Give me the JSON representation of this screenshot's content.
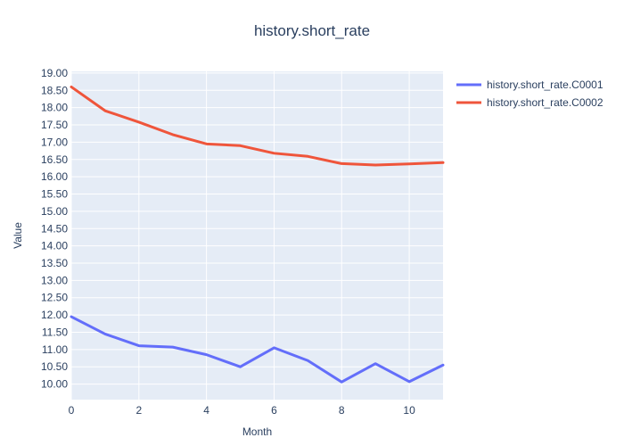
{
  "chart_data": {
    "type": "line",
    "title": "history.short_rate",
    "xlabel": "Month",
    "ylabel": "Value",
    "xlim": [
      0,
      11
    ],
    "ylim": [
      9.55,
      19.05
    ],
    "x_ticks": [
      0,
      2,
      4,
      6,
      8,
      10
    ],
    "y_ticks": [
      10.0,
      10.5,
      11.0,
      11.5,
      12.0,
      12.5,
      13.0,
      13.5,
      14.0,
      14.5,
      15.0,
      15.5,
      16.0,
      16.5,
      17.0,
      17.5,
      18.0,
      18.5,
      19.0
    ],
    "x_tick_labels": [
      "0",
      "2",
      "4",
      "6",
      "8",
      "10"
    ],
    "y_tick_labels": [
      "10.00",
      "10.50",
      "11.00",
      "11.50",
      "12.00",
      "12.50",
      "13.00",
      "13.50",
      "14.00",
      "14.50",
      "15.00",
      "15.50",
      "16.00",
      "16.50",
      "17.00",
      "17.50",
      "18.00",
      "18.50",
      "19.00"
    ],
    "grid": true,
    "legend_position": "top-right",
    "x": [
      0,
      1,
      2,
      3,
      4,
      5,
      6,
      7,
      8,
      9,
      10,
      11
    ],
    "series": [
      {
        "name": "history.short_rate.C0001",
        "color": "#636efa",
        "values": [
          11.95,
          11.45,
          11.11,
          11.07,
          10.85,
          10.5,
          11.05,
          10.68,
          10.06,
          10.59,
          10.07,
          10.55
        ]
      },
      {
        "name": "history.short_rate.C0002",
        "color": "#ef553b",
        "values": [
          18.6,
          17.91,
          17.58,
          17.22,
          16.95,
          16.9,
          16.68,
          16.59,
          16.38,
          16.34,
          16.37,
          16.41
        ]
      }
    ]
  }
}
